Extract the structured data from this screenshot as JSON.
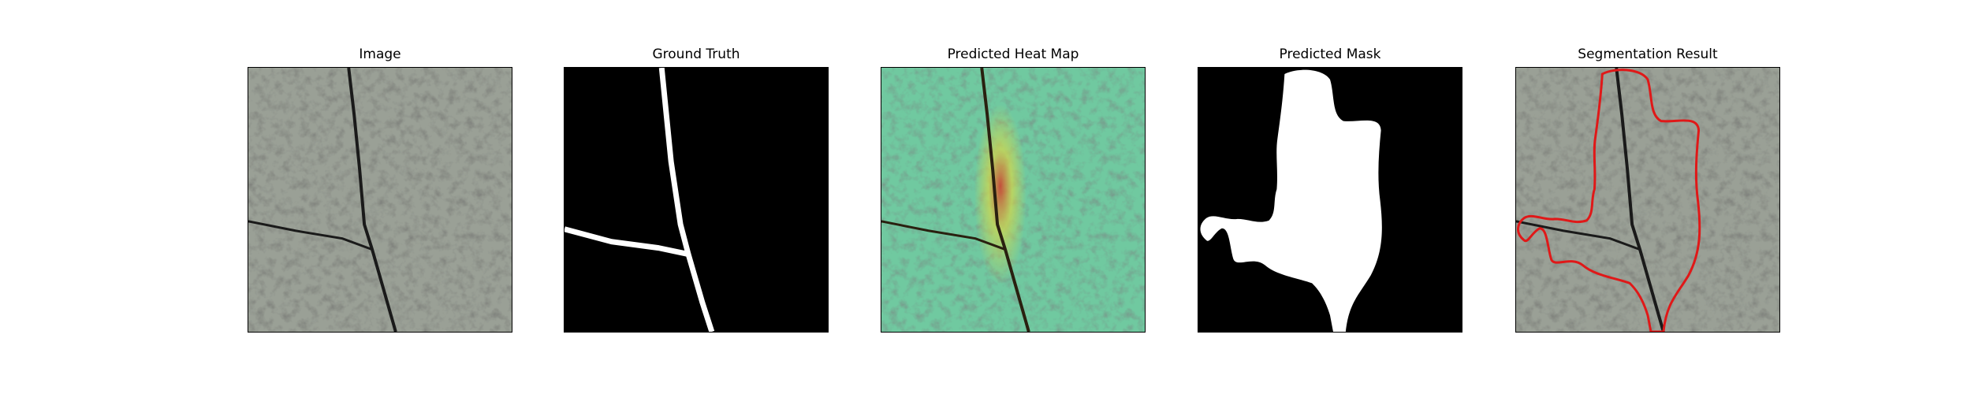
{
  "panels": {
    "image": {
      "title": "Image"
    },
    "ground_truth": {
      "title": "Ground Truth"
    },
    "heat_map": {
      "title": "Predicted Heat Map"
    },
    "mask": {
      "title": "Predicted Mask"
    },
    "segmentation": {
      "title": "Segmentation Result"
    }
  },
  "colors": {
    "stone_light": "#9aa096",
    "stone_dark": "#3a3d38",
    "crack": "#1a1a1a",
    "mask_white": "#ffffff",
    "mask_black": "#000000",
    "heat_green": "#3fcf9a",
    "heat_yellow": "#d6d84a",
    "heat_red": "#d23a2a",
    "contour_red": "#e01818"
  }
}
